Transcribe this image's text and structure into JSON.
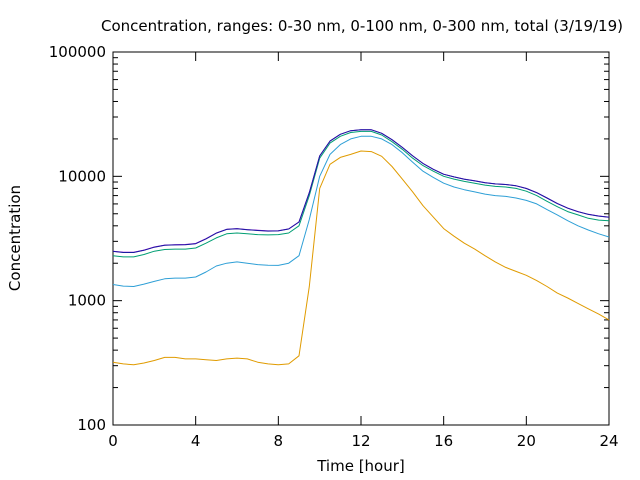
{
  "chart_data": {
    "type": "line",
    "title": "Concentration, ranges: 0-30 nm, 0-100 nm, 0-300 nm, total (3/19/19)",
    "xlabel": "Time [hour]",
    "ylabel": "Concentration",
    "xlim": [
      0,
      24
    ],
    "ylim": [
      100,
      100000
    ],
    "yscale": "log",
    "grid": false,
    "legend": "none",
    "x_ticks": [
      "0",
      "4",
      "8",
      "12",
      "16",
      "20",
      "24"
    ],
    "y_ticks": [
      "100",
      "1000",
      "10000",
      "100000"
    ],
    "x": [
      0,
      0.5,
      1,
      1.5,
      2,
      2.5,
      3,
      3.5,
      4,
      4.5,
      5,
      5.5,
      6,
      6.5,
      7,
      7.5,
      8,
      8.5,
      9,
      9.5,
      10,
      10.5,
      11,
      11.5,
      12,
      12.5,
      13,
      13.5,
      14,
      14.5,
      15,
      15.5,
      16,
      16.5,
      17,
      17.5,
      18,
      18.5,
      19,
      19.5,
      20,
      20.5,
      21,
      21.5,
      22,
      22.5,
      23,
      23.5,
      24
    ],
    "series": [
      {
        "color": "#e09b00",
        "values": [
          320,
          310,
          305,
          315,
          330,
          350,
          350,
          340,
          340,
          335,
          330,
          340,
          345,
          340,
          320,
          310,
          305,
          310,
          360,
          1300,
          8000,
          12500,
          14200,
          15000,
          16000,
          15800,
          14500,
          12000,
          9500,
          7500,
          5800,
          4700,
          3800,
          3300,
          2900,
          2600,
          2300,
          2050,
          1850,
          1720,
          1600,
          1450,
          1300,
          1150,
          1050,
          950,
          860,
          780,
          700
        ]
      },
      {
        "color": "#2e9fd6",
        "values": [
          1350,
          1310,
          1300,
          1360,
          1430,
          1500,
          1520,
          1520,
          1550,
          1700,
          1900,
          2000,
          2050,
          2000,
          1950,
          1930,
          1920,
          2000,
          2300,
          4500,
          10000,
          15000,
          18000,
          20000,
          21000,
          21000,
          20000,
          18000,
          15500,
          13000,
          11000,
          9800,
          8800,
          8200,
          7800,
          7500,
          7200,
          7000,
          6900,
          6700,
          6400,
          6000,
          5400,
          4900,
          4400,
          4000,
          3700,
          3450,
          3250
        ]
      },
      {
        "color": "#009e73",
        "values": [
          2300,
          2250,
          2250,
          2350,
          2500,
          2580,
          2600,
          2600,
          2650,
          2900,
          3200,
          3450,
          3500,
          3450,
          3400,
          3380,
          3400,
          3500,
          4000,
          7000,
          14000,
          18500,
          21000,
          22500,
          23000,
          23000,
          21500,
          19000,
          16500,
          14000,
          12200,
          11000,
          10000,
          9500,
          9100,
          8800,
          8500,
          8300,
          8200,
          8000,
          7600,
          7000,
          6300,
          5700,
          5200,
          4900,
          4600,
          4450,
          4400
        ]
      },
      {
        "color": "#9400d3",
        "values": [
          2500,
          2450,
          2450,
          2550,
          2700,
          2800,
          2820,
          2830,
          2880,
          3150,
          3500,
          3750,
          3800,
          3730,
          3680,
          3640,
          3650,
          3780,
          4300,
          7400,
          14600,
          19200,
          21800,
          23300,
          23700,
          23700,
          22200,
          19700,
          17100,
          14600,
          12700,
          11400,
          10400,
          9900,
          9500,
          9200,
          8900,
          8700,
          8600,
          8400,
          8000,
          7400,
          6700,
          6050,
          5550,
          5200,
          4950,
          4800,
          4700
        ]
      },
      {
        "color": "#1a1aa0",
        "values": [
          2490,
          2440,
          2440,
          2540,
          2690,
          2790,
          2810,
          2820,
          2870,
          3140,
          3490,
          3740,
          3790,
          3720,
          3670,
          3630,
          3640,
          3770,
          4290,
          7390,
          14590,
          19190,
          21790,
          23290,
          23690,
          23690,
          22190,
          19690,
          17090,
          14590,
          12690,
          11390,
          10390,
          9890,
          9490,
          9190,
          8890,
          8690,
          8590,
          8390,
          7990,
          7390,
          6690,
          6040,
          5540,
          5190,
          4940,
          4790,
          4690
        ]
      }
    ]
  }
}
